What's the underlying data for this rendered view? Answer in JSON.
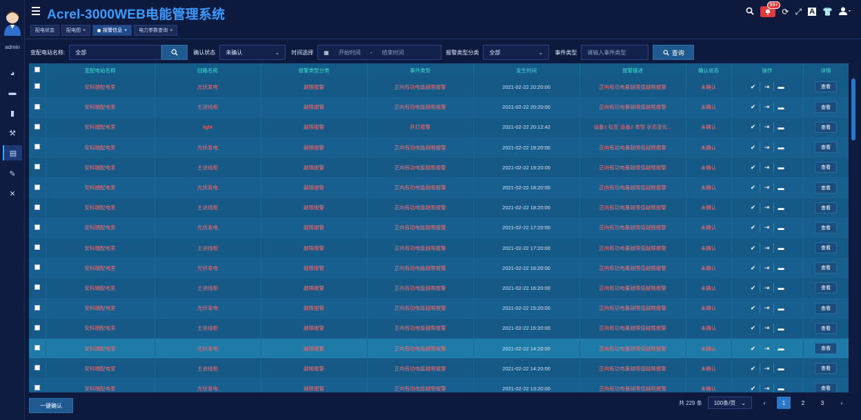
{
  "app": {
    "title": "Acrel-3000WEB电能管理系统",
    "user": "admin",
    "notif_count": "99+"
  },
  "tabs": [
    {
      "label": "配电状态"
    },
    {
      "label": "配电图"
    },
    {
      "label": "报警信息"
    },
    {
      "label": "电力参数查询"
    }
  ],
  "filter": {
    "station_label": "变配电站名称:",
    "station_value": "全部",
    "confirm_label": "确认状态",
    "confirm_value": "未确认",
    "time_label": "时间选择",
    "start_placeholder": "开始时间",
    "range_sep": "-",
    "end_placeholder": "结束时间",
    "alarm_type_label": "报警类型分类",
    "alarm_type_value": "全部",
    "event_type_label": "事件类型",
    "event_type_placeholder": "请输入事件类型",
    "query_label": "查询"
  },
  "table": {
    "headers": [
      "变配电站名称",
      "回路名称",
      "报警类型分类",
      "事件类型",
      "发生时间",
      "报警描述",
      "确认状态",
      "操作",
      "详情"
    ],
    "view_label": "查看",
    "rows": [
      {
        "station": "安科瑞配电室",
        "loop": "光伏发电",
        "category": "越限报警",
        "event": "正向有功电能越限报警",
        "time": "2021-02-22 20:20:00",
        "desc": "正向有功电量越限值越限报警",
        "status": "未确认"
      },
      {
        "station": "安科瑞配电室",
        "loop": "主进线柜",
        "category": "越限报警",
        "event": "正向有功电能越限报警",
        "time": "2021-02-22 20:20:00",
        "desc": "正向有功电量越限值越限报警",
        "status": "未确认"
      },
      {
        "station": "安科瑞配电室",
        "loop": "light",
        "category": "越限报警",
        "event": "开灯报警",
        "time": "2021-02-22 20:12:42",
        "desc": "设备2 标签 设备2 类型 状态变化...",
        "status": "未确认"
      },
      {
        "station": "安科瑞配电室",
        "loop": "光伏发电",
        "category": "越限报警",
        "event": "正向有功电能越限报警",
        "time": "2021-02-22 19:20:00",
        "desc": "正向有功电量越限值越限报警",
        "status": "未确认"
      },
      {
        "station": "安科瑞配电室",
        "loop": "主进线柜",
        "category": "越限报警",
        "event": "正向有功电能越限报警",
        "time": "2021-02-22 19:20:00",
        "desc": "正向有功电量越限值越限报警",
        "status": "未确认"
      },
      {
        "station": "安科瑞配电室",
        "loop": "光伏发电",
        "category": "越限报警",
        "event": "正向有功电能越限报警",
        "time": "2021-02-22 18:20:00",
        "desc": "正向有功电量越限值越限报警",
        "status": "未确认"
      },
      {
        "station": "安科瑞配电室",
        "loop": "主进线柜",
        "category": "越限报警",
        "event": "正向有功电能越限报警",
        "time": "2021-02-22 18:20:00",
        "desc": "正向有功电量越限值越限报警",
        "status": "未确认"
      },
      {
        "station": "安科瑞配电室",
        "loop": "光伏发电",
        "category": "越限报警",
        "event": "正向有功电能越限报警",
        "time": "2021-02-22 17:20:00",
        "desc": "正向有功电量越限值越限报警",
        "status": "未确认"
      },
      {
        "station": "安科瑞配电室",
        "loop": "主进线柜",
        "category": "越限报警",
        "event": "正向有功电能越限报警",
        "time": "2021-02-22 17:20:00",
        "desc": "正向有功电量越限值越限报警",
        "status": "未确认"
      },
      {
        "station": "安科瑞配电室",
        "loop": "光伏发电",
        "category": "越限报警",
        "event": "正向有功电能越限报警",
        "time": "2021-02-22 16:20:00",
        "desc": "正向有功电量越限值越限报警",
        "status": "未确认"
      },
      {
        "station": "安科瑞配电室",
        "loop": "主进线柜",
        "category": "越限报警",
        "event": "正向有功电能越限报警",
        "time": "2021-02-22 16:20:00",
        "desc": "正向有功电量越限值越限报警",
        "status": "未确认"
      },
      {
        "station": "安科瑞配电室",
        "loop": "光伏发电",
        "category": "越限报警",
        "event": "正向有功电能越限报警",
        "time": "2021-02-22 15:20:00",
        "desc": "正向有功电量越限值越限报警",
        "status": "未确认"
      },
      {
        "station": "安科瑞配电室",
        "loop": "主进线柜",
        "category": "越限报警",
        "event": "正向有功电能越限报警",
        "time": "2021-02-22 15:20:00",
        "desc": "正向有功电量越限值越限报警",
        "status": "未确认"
      },
      {
        "station": "安科瑞配电室",
        "loop": "光伏发电",
        "category": "越限报警",
        "event": "正向有功电能越限报警",
        "time": "2021-02-22 14:20:00",
        "desc": "正向有功电量越限值越限报警",
        "status": "未确认"
      },
      {
        "station": "安科瑞配电室",
        "loop": "主进线柜",
        "category": "越限报警",
        "event": "正向有功电能越限报警",
        "time": "2021-02-22 14:20:00",
        "desc": "正向有功电量越限值越限报警",
        "status": "未确认"
      },
      {
        "station": "安科瑞配电室",
        "loop": "光伏发电",
        "category": "越限报警",
        "event": "正向有功电能越限报警",
        "time": "2021-02-22 13:20:00",
        "desc": "正向有功电量越限值越限报警",
        "status": "未确认"
      }
    ]
  },
  "footer": {
    "confirm_all_label": "一键确认",
    "total_text": "共 229 条",
    "page_size": "100条/页",
    "pages": [
      "1",
      "2",
      "3"
    ],
    "prev": "‹",
    "next": "›"
  },
  "colors": {
    "accent": "#3c9bff",
    "alarm_text": "#ff6b6b",
    "header_text": "#3fe0d0",
    "bg": "#0e1a3d"
  }
}
